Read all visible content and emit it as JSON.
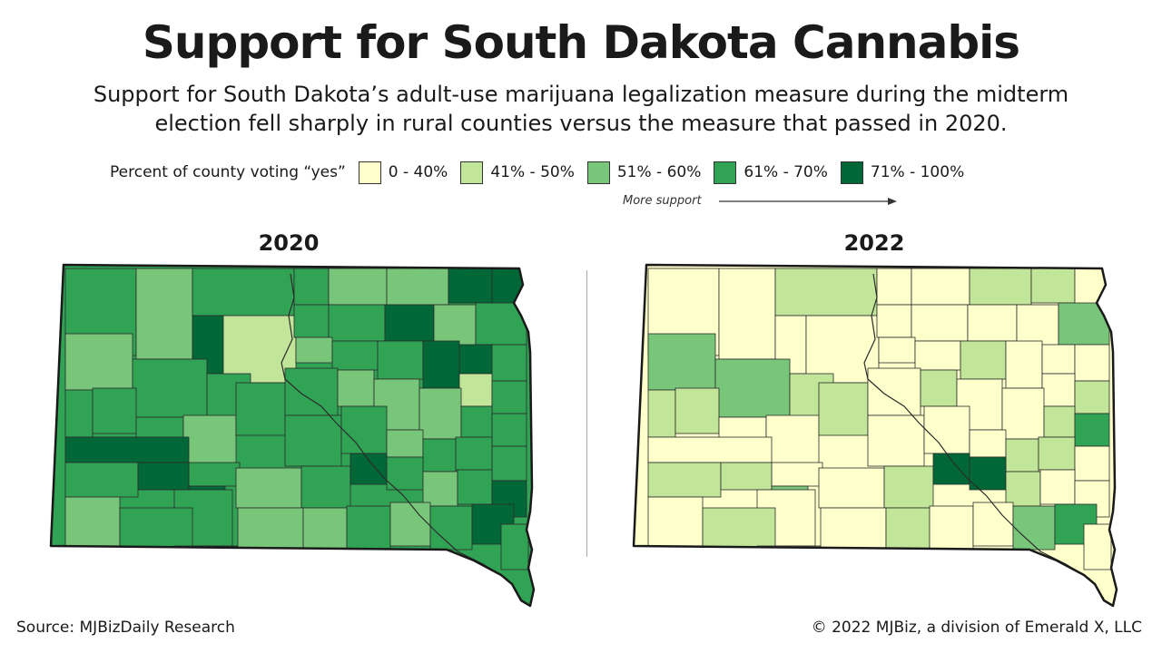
{
  "title": "Support for South Dakota Cannabis",
  "subtitle_line1": "Support for South Dakota’s adult-use marijuana legalization measure during the midterm",
  "subtitle_line2": "election fell sharply in rural counties versus the measure that passed in 2020.",
  "legend": {
    "title": "Percent of county voting “yes”",
    "items": [
      {
        "label": "0 - 40%",
        "color": "#ffffcc"
      },
      {
        "label": "41% - 50%",
        "color": "#c2e699"
      },
      {
        "label": "51% - 60%",
        "color": "#78c679"
      },
      {
        "label": "61% - 70%",
        "color": "#31a354"
      },
      {
        "label": "71% - 100%",
        "color": "#006837"
      }
    ],
    "direction_label": "More support"
  },
  "maps": [
    {
      "label": "2020",
      "counties": [
        3,
        2,
        3,
        3,
        2,
        2,
        4,
        4,
        4,
        1,
        3,
        3,
        4,
        2,
        3,
        2,
        3,
        3,
        2,
        3,
        3,
        4,
        4,
        3,
        3,
        1,
        3,
        3,
        3,
        2,
        3,
        3,
        2,
        2,
        2,
        3,
        3,
        3,
        3,
        4,
        3,
        2,
        3,
        3,
        3,
        3,
        4,
        4,
        3,
        2,
        3,
        4,
        3,
        2,
        3,
        4,
        2,
        3,
        4,
        2,
        2,
        3,
        2,
        3,
        4,
        3
      ]
    },
    {
      "label": "2022",
      "counties": [
        0,
        0,
        1,
        0,
        0,
        1,
        1,
        0,
        0,
        0,
        0,
        0,
        0,
        0,
        2,
        2,
        2,
        1,
        0,
        0,
        1,
        0,
        0,
        0,
        1,
        0,
        1,
        1,
        0,
        0,
        1,
        0,
        1,
        0,
        0,
        1,
        3,
        0,
        0,
        0,
        0,
        0,
        1,
        1,
        0,
        1,
        1,
        2,
        0,
        0,
        1,
        4,
        4,
        1,
        0,
        0,
        0,
        1,
        0,
        0,
        1,
        0,
        0,
        2,
        3,
        0
      ]
    }
  ],
  "source": "Source: MJBizDaily Research",
  "copyright": "© 2022 MJBiz, a division of Emerald X, LLC"
}
